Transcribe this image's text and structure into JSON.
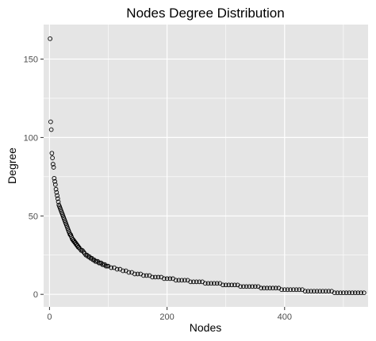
{
  "chart_data": {
    "type": "scatter",
    "title": "Nodes Degree Distribution",
    "xlabel": "Nodes",
    "ylabel": "Degree",
    "xlim": [
      -10,
      542
    ],
    "ylim": [
      -8,
      172
    ],
    "x_ticks": [
      0,
      200,
      400
    ],
    "y_ticks": [
      0,
      50,
      100,
      150
    ],
    "x_minor": [
      100,
      300,
      500
    ],
    "y_minor": [
      25,
      75,
      125
    ],
    "grid": true,
    "legend": "none",
    "colors": {
      "panel": "#e5e5e5",
      "grid": "#ffffff",
      "point_stroke": "#000000"
    },
    "series": [
      {
        "x": [
          1,
          2,
          3,
          4,
          5,
          6,
          7,
          8,
          9,
          10,
          11,
          12,
          13,
          14,
          15,
          16,
          17,
          18,
          19,
          20,
          21,
          22,
          23,
          24,
          25,
          26,
          27,
          28,
          29,
          30,
          31,
          32,
          33,
          34,
          35,
          36,
          37,
          38,
          39,
          40,
          41,
          42,
          43,
          44,
          45,
          46,
          47,
          48,
          49,
          50,
          52,
          54,
          56,
          58,
          60,
          62,
          64,
          66,
          68,
          70,
          72,
          74,
          76,
          78,
          80,
          82,
          84,
          86,
          88,
          90,
          92,
          94,
          96,
          98,
          100,
          105,
          110,
          115,
          120,
          125,
          130,
          135,
          140,
          145,
          150,
          155,
          160,
          165,
          170,
          175,
          180,
          185,
          190,
          195,
          200,
          205,
          210,
          215,
          220,
          225,
          230,
          235,
          240,
          245,
          250,
          255,
          260,
          265,
          270,
          275,
          280,
          285,
          290,
          295,
          300,
          305,
          310,
          315,
          320,
          325,
          330,
          335,
          340,
          345,
          350,
          355,
          360,
          365,
          370,
          375,
          380,
          385,
          390,
          395,
          400,
          405,
          410,
          415,
          420,
          425,
          430,
          435,
          440,
          445,
          450,
          455,
          460,
          465,
          470,
          475,
          480,
          485,
          490,
          495,
          500,
          505,
          510,
          515,
          520,
          525,
          530,
          535
        ],
        "y": [
          163,
          110,
          105,
          90,
          87,
          83,
          81,
          74,
          72,
          70,
          67,
          65,
          63,
          61,
          59,
          57,
          56,
          55,
          54,
          53,
          52,
          51,
          50,
          49,
          48,
          47,
          46,
          45,
          44,
          43,
          42,
          41,
          40,
          39,
          38,
          38,
          37,
          36,
          35,
          35,
          34,
          34,
          33,
          33,
          32,
          32,
          31,
          31,
          30,
          30,
          29,
          28,
          28,
          27,
          26,
          25,
          25,
          24,
          24,
          23,
          23,
          22,
          22,
          21,
          21,
          21,
          20,
          20,
          20,
          19,
          19,
          19,
          18,
          18,
          18,
          17,
          17,
          16,
          16,
          15,
          15,
          14,
          14,
          13,
          13,
          13,
          12,
          12,
          12,
          11,
          11,
          11,
          11,
          10,
          10,
          10,
          10,
          9,
          9,
          9,
          9,
          9,
          8,
          8,
          8,
          8,
          8,
          7,
          7,
          7,
          7,
          7,
          7,
          6,
          6,
          6,
          6,
          6,
          6,
          5,
          5,
          5,
          5,
          5,
          5,
          5,
          4,
          4,
          4,
          4,
          4,
          4,
          4,
          3,
          3,
          3,
          3,
          3,
          3,
          3,
          3,
          2,
          2,
          2,
          2,
          2,
          2,
          2,
          2,
          2,
          2,
          1,
          1,
          1,
          1,
          1,
          1,
          1,
          1,
          1,
          1,
          1
        ]
      }
    ]
  }
}
